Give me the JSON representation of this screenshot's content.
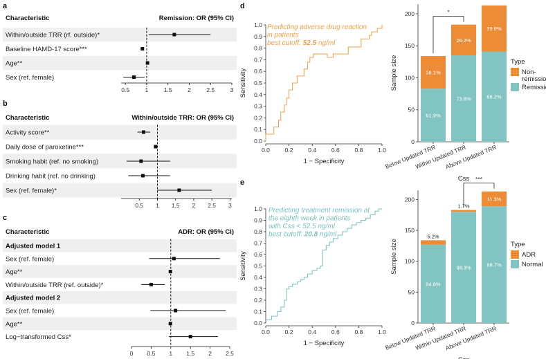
{
  "colors": {
    "band": "#efefef",
    "orange": "#ec8c37",
    "teal": "#82c4c1",
    "roc_orange": "#f0a04b",
    "roc_teal": "#78c2bf"
  },
  "panel_a": {
    "label": "a",
    "col_header": "Characteristic",
    "stat_header": "Remission: OR (95% CI)",
    "ticks": [
      "0.5",
      "1",
      "1.5",
      "2",
      "2.5",
      "3"
    ],
    "tick_values": [
      0.5,
      1,
      1.5,
      2,
      2.5,
      3
    ],
    "rows": [
      {
        "label": "Within/outside TRR (rf. outside)*",
        "est": 1.65,
        "lo": 1.05,
        "hi": 2.5,
        "band": true
      },
      {
        "label": "Baseline HAMD-17 score***",
        "est": 0.9,
        "lo": 0.89,
        "hi": 0.91,
        "band": false
      },
      {
        "label": "Age**",
        "est": 1.02,
        "lo": 1.0,
        "hi": 1.04,
        "band": true
      },
      {
        "label": "Sex (ref. female)",
        "est": 0.7,
        "lo": 0.45,
        "hi": 0.95,
        "band": false
      }
    ]
  },
  "panel_b": {
    "label": "b",
    "col_header": "Characteristic",
    "stat_header": "Within/outside TRR: OR (95% CI)",
    "ticks": [
      "0.5",
      "1",
      "1.5",
      "2",
      "2.5",
      "3"
    ],
    "tick_values": [
      0.5,
      1,
      1.5,
      2,
      2.5,
      3
    ],
    "rows": [
      {
        "label": "Activity score**",
        "est": 0.62,
        "lo": 0.45,
        "hi": 0.8,
        "band": true
      },
      {
        "label": "Daily dose of paroxetine***",
        "est": 0.95,
        "lo": 0.93,
        "hi": 0.97,
        "band": false
      },
      {
        "label": "Smoking habit (ref. no smoking)",
        "est": 0.55,
        "lo": 0.15,
        "hi": 1.35,
        "band": true
      },
      {
        "label": "Drinking habit (ref. no drinking)",
        "est": 0.6,
        "lo": 0.2,
        "hi": 1.35,
        "band": false
      },
      {
        "label": "Sex (ref. female)*",
        "est": 1.6,
        "lo": 1.0,
        "hi": 2.5,
        "band": true
      }
    ]
  },
  "panel_c": {
    "label": "c",
    "col_header": "Characteristic",
    "stat_header": "ADR: OR (95% CI)",
    "ticks": [
      "0",
      "0.5",
      "1",
      "1.5",
      "2",
      "2.5"
    ],
    "tick_values": [
      0,
      0.5,
      1,
      1.5,
      2,
      2.5
    ],
    "rows": [
      {
        "label": "Adjusted model 1",
        "bold": true,
        "band": true
      },
      {
        "label": "Sex (ref. female)",
        "est": 1.08,
        "lo": 0.45,
        "hi": 2.25,
        "band": false
      },
      {
        "label": "Age**",
        "est": 0.99,
        "lo": 0.97,
        "hi": 1.01,
        "band": true
      },
      {
        "label": "Within/outside TRR (ref. outside)*",
        "est": 0.5,
        "lo": 0.25,
        "hi": 0.85,
        "band": false
      },
      {
        "label": "Adjusted model 2",
        "bold": true,
        "band": true
      },
      {
        "label": "Sex (ref. female)",
        "est": 1.12,
        "lo": 0.48,
        "hi": 2.4,
        "band": false
      },
      {
        "label": "Age**",
        "est": 0.99,
        "lo": 0.97,
        "hi": 1.01,
        "band": true
      },
      {
        "label": "Log−transformed Css*",
        "est": 1.5,
        "lo": 0.95,
        "hi": 2.2,
        "band": false
      }
    ]
  },
  "chart_data": [
    {
      "type": "line",
      "panel": "d",
      "xlabel": "1 − Specificity",
      "ylabel": "Sensitivity",
      "xticks": [
        "0.0",
        "0.2",
        "0.4",
        "0.6",
        "0.8",
        "1.0"
      ],
      "yticks": [
        "0.0",
        "0.1",
        "0.2",
        "0.3",
        "0.4",
        "0.5",
        "0.6",
        "0.7",
        "0.8",
        "0.9",
        "1.0"
      ],
      "xlim": [
        0,
        1
      ],
      "ylim": [
        0,
        1
      ],
      "annotation": [
        "Predicting adverse drug reaction",
        "in patients",
        "best cutoff: "
      ],
      "cutoff_value": "52.5",
      "cutoff_unit": " ng/ml",
      "x": [
        0,
        0,
        0.02,
        0.02,
        0.07,
        0.07,
        0.11,
        0.11,
        0.13,
        0.13,
        0.16,
        0.16,
        0.18,
        0.18,
        0.2,
        0.2,
        0.23,
        0.23,
        0.27,
        0.27,
        0.33,
        0.33,
        0.36,
        0.36,
        0.38,
        0.38,
        0.41,
        0.41,
        0.47,
        0.47,
        0.53,
        0.53,
        0.58,
        0.58,
        0.71,
        0.71,
        0.76,
        0.76,
        0.82,
        0.82,
        0.89,
        0.89,
        0.91,
        0.91,
        0.93,
        0.93,
        0.96,
        0.96,
        0.98,
        0.98,
        1.0,
        1.0
      ],
      "y": [
        0,
        0.06,
        0.06,
        0.06,
        0.06,
        0.12,
        0.12,
        0.18,
        0.18,
        0.25,
        0.25,
        0.31,
        0.31,
        0.37,
        0.37,
        0.44,
        0.44,
        0.5,
        0.5,
        0.56,
        0.56,
        0.62,
        0.62,
        0.68,
        0.68,
        0.72,
        0.72,
        0.75,
        0.75,
        0.75,
        0.75,
        0.72,
        0.72,
        0.75,
        0.75,
        0.81,
        0.81,
        0.81,
        0.81,
        0.88,
        0.88,
        0.91,
        0.91,
        0.94,
        0.94,
        0.94,
        0.94,
        0.97,
        0.97,
        0.97,
        0.97,
        1.0
      ]
    },
    {
      "type": "bar",
      "panel": "d-right",
      "categories": [
        "Below Updated TRR",
        "Within Updated TRR",
        "Above Updated TRR"
      ],
      "xlabel": "Css",
      "ylabel": "Sample size",
      "yticks": [
        "0",
        "50",
        "100",
        "150",
        "200"
      ],
      "ylim": [
        0,
        215
      ],
      "legend_title": "Type",
      "legend_position": "right",
      "series": [
        {
          "name": "Remission",
          "values": [
            83,
            135,
            141
          ],
          "labels": [
            "61.9%",
            "73.8%",
            "66.2%"
          ]
        },
        {
          "name": "Non-remission",
          "values": [
            51,
            48,
            72
          ],
          "labels": [
            "38.1%",
            "26.2%",
            "33.8%"
          ]
        }
      ],
      "legend_labels": [
        [
          "Non-",
          "remission"
        ],
        [
          "Remission"
        ]
      ],
      "significance": {
        "from": 0,
        "to": 1,
        "label": "*"
      }
    },
    {
      "type": "line",
      "panel": "e",
      "xlabel": "1 − Specificity",
      "ylabel": "Sensitivity",
      "xticks": [
        "0.0",
        "0.2",
        "0.4",
        "0.6",
        "0.8",
        "1.0"
      ],
      "yticks": [
        "0.0",
        "0.1",
        "0.2",
        "0.3",
        "0.4",
        "0.5",
        "0.6",
        "0.7",
        "0.8",
        "0.9",
        "1.0"
      ],
      "xlim": [
        0,
        1
      ],
      "ylim": [
        0,
        1
      ],
      "annotation": [
        "Predicting treatment remission at",
        "the eighth week in patients",
        "with Css < 52.5 ng/ml",
        "best cutoff: "
      ],
      "cutoff_value": "20.8",
      "cutoff_unit": " ng/ml",
      "x": [
        0,
        0.05,
        0.05,
        0.1,
        0.1,
        0.13,
        0.13,
        0.16,
        0.16,
        0.18,
        0.18,
        0.2,
        0.2,
        0.23,
        0.23,
        0.27,
        0.27,
        0.3,
        0.3,
        0.33,
        0.33,
        0.36,
        0.36,
        0.4,
        0.4,
        0.44,
        0.44,
        0.47,
        0.47,
        0.49,
        0.49,
        0.52,
        0.52,
        0.55,
        0.55,
        0.58,
        0.58,
        0.62,
        0.62,
        0.66,
        0.66,
        0.7,
        0.7,
        0.74,
        0.74,
        0.78,
        0.78,
        0.82,
        0.82,
        0.86,
        0.86,
        0.9,
        0.9,
        0.94,
        0.94,
        0.97,
        0.97,
        1.0
      ],
      "y": [
        0.03,
        0.03,
        0.06,
        0.06,
        0.1,
        0.1,
        0.14,
        0.14,
        0.2,
        0.2,
        0.3,
        0.3,
        0.32,
        0.32,
        0.34,
        0.34,
        0.36,
        0.36,
        0.38,
        0.38,
        0.4,
        0.4,
        0.43,
        0.43,
        0.46,
        0.46,
        0.48,
        0.48,
        0.5,
        0.5,
        0.64,
        0.64,
        0.68,
        0.68,
        0.71,
        0.71,
        0.74,
        0.74,
        0.77,
        0.77,
        0.8,
        0.8,
        0.83,
        0.83,
        0.86,
        0.86,
        0.88,
        0.88,
        0.9,
        0.9,
        0.92,
        0.92,
        0.95,
        0.95,
        0.98,
        0.98,
        1.0,
        1.0
      ]
    },
    {
      "type": "bar",
      "panel": "e-right",
      "categories": [
        "Below Updated TRR",
        "Within Updated TRR",
        "Above Updated TRR"
      ],
      "xlabel": "Css",
      "ylabel": "Sample size",
      "yticks": [
        "0",
        "50",
        "100",
        "150",
        "200"
      ],
      "ylim": [
        0,
        215
      ],
      "legend_title": "Type",
      "legend_position": "right",
      "series": [
        {
          "name": "Normal",
          "values": [
            127,
            180,
            189
          ],
          "labels": [
            "94.8%",
            "98.3%",
            "88.7%"
          ]
        },
        {
          "name": "ADR",
          "values": [
            7,
            3,
            24
          ],
          "labels": [
            "5.2%",
            "1.7%",
            "11.3%"
          ]
        }
      ],
      "legend_labels": [
        [
          "ADR"
        ],
        [
          "Normal"
        ]
      ],
      "significance": {
        "from": 1,
        "to": 2,
        "label": "***"
      }
    }
  ]
}
